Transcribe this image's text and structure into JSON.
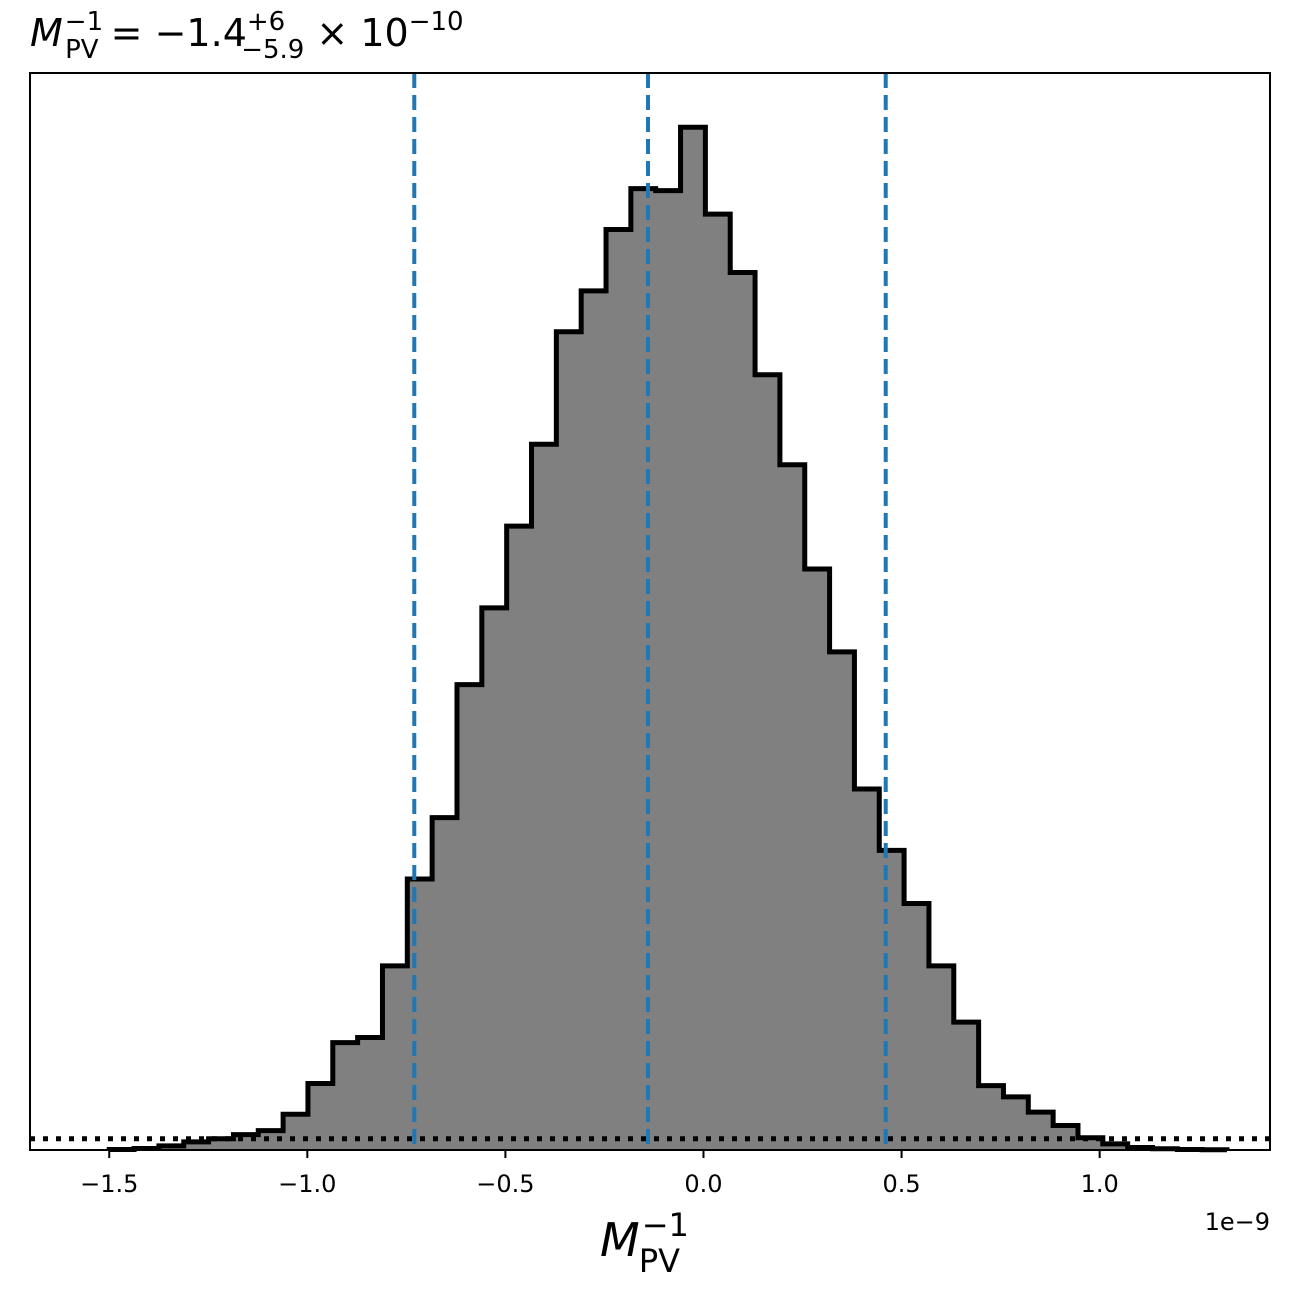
{
  "chart_data": {
    "type": "bar",
    "title": {
      "symbol": "M",
      "sub": "PV",
      "sup": "−1",
      "eq": " = −1.4",
      "plus": "+6",
      "minus": "−5.9",
      "times": " × 10",
      "exp": "−10"
    },
    "xlabel": {
      "symbol": "M",
      "sub": "PV",
      "sup": "−1"
    },
    "x_offset_label": "1e−9",
    "xlim": [
      -1.7e-09,
      1.43e-09
    ],
    "ylim": [
      0,
      1.053
    ],
    "x_ticks": [
      {
        "value": -1.5e-09,
        "label": "−1.5"
      },
      {
        "value": -1e-09,
        "label": "−1.0"
      },
      {
        "value": -5e-10,
        "label": "−0.5"
      },
      {
        "value": 0.0,
        "label": "0.0"
      },
      {
        "value": 5e-10,
        "label": "0.5"
      },
      {
        "value": 1e-09,
        "label": "1.0"
      }
    ],
    "y_ticks_visible": false,
    "bins": {
      "start": -1.5e-09,
      "width": 6.27e-11,
      "heights": [
        0.0005,
        0.0015,
        0.004,
        0.008,
        0.011,
        0.015,
        0.019,
        0.035,
        0.065,
        0.105,
        0.11,
        0.18,
        0.265,
        0.325,
        0.455,
        0.53,
        0.61,
        0.69,
        0.8,
        0.84,
        0.9,
        0.94,
        0.938,
        1.0,
        0.915,
        0.858,
        0.758,
        0.67,
        0.568,
        0.487,
        0.353,
        0.293,
        0.241,
        0.18,
        0.125,
        0.063,
        0.052,
        0.037,
        0.024,
        0.012,
        0.006,
        0.0025,
        0.0012,
        0.0005,
        0.0002
      ]
    },
    "vlines": [
      {
        "x": -7.3e-10,
        "style": "dashed",
        "color": "#1f77b4"
      },
      {
        "x": -1.4e-10,
        "style": "dashed",
        "color": "#1f77b4"
      },
      {
        "x": 4.6e-10,
        "style": "dashed",
        "color": "#1f77b4"
      }
    ],
    "hline": {
      "y": 0.011,
      "style": "dotted",
      "color": "#000000"
    },
    "colors": {
      "fill": "#808080",
      "edge": "#000000",
      "quantile": "#1f77b4"
    },
    "grid": false
  }
}
